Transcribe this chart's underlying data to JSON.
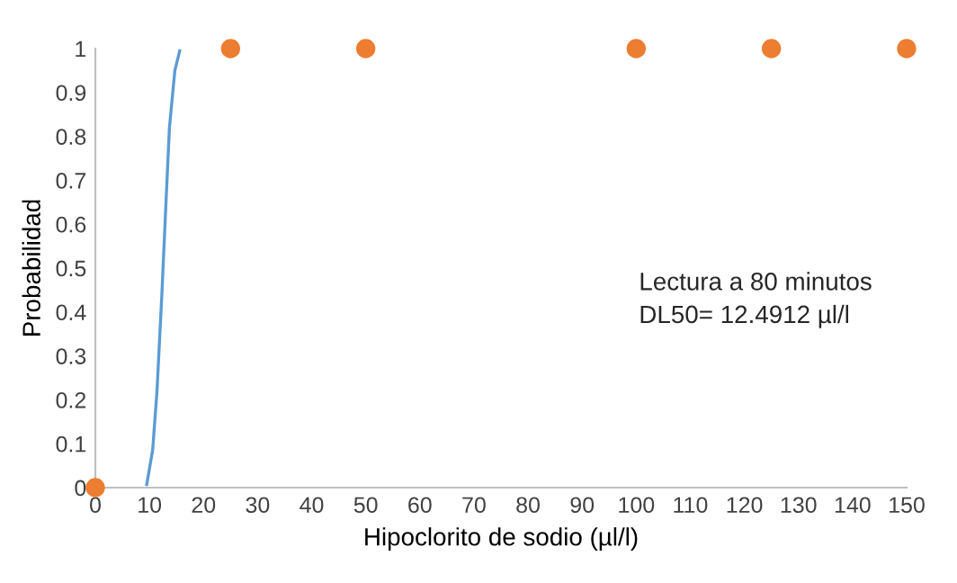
{
  "chart_data": {
    "type": "scatter",
    "xlabel": "Hipoclorito de sodio (µl/l)",
    "ylabel": "Probabilidad",
    "series": [
      {
        "type": "line",
        "color": "#5b9bd5",
        "marker": "none",
        "x": [
          9.5,
          10.6,
          11.4,
          12.3,
          13.1,
          13.7,
          14.7,
          15.6
        ],
        "values": [
          0.007,
          0.086,
          0.22,
          0.44,
          0.66,
          0.82,
          0.95,
          0.995
        ]
      },
      {
        "color": "#ed7d31",
        "marker": "circle",
        "x": [
          0,
          25,
          50,
          100,
          125,
          150
        ],
        "values": [
          0,
          1,
          1,
          1,
          1,
          1
        ]
      }
    ],
    "xlim": [
      0,
      150
    ],
    "xticks": [
      0,
      10,
      20,
      30,
      40,
      50,
      60,
      70,
      80,
      90,
      100,
      110,
      120,
      130,
      140,
      150
    ],
    "ylim": [
      0,
      1
    ],
    "yticks": [
      0,
      0.1,
      0.2,
      0.3,
      0.4,
      0.5,
      0.6,
      0.7,
      0.8,
      0.9,
      1
    ],
    "grid": false,
    "annotations": [
      "Lectura a 80 minutos",
      "DL50= 12.4912 µl/l"
    ]
  }
}
